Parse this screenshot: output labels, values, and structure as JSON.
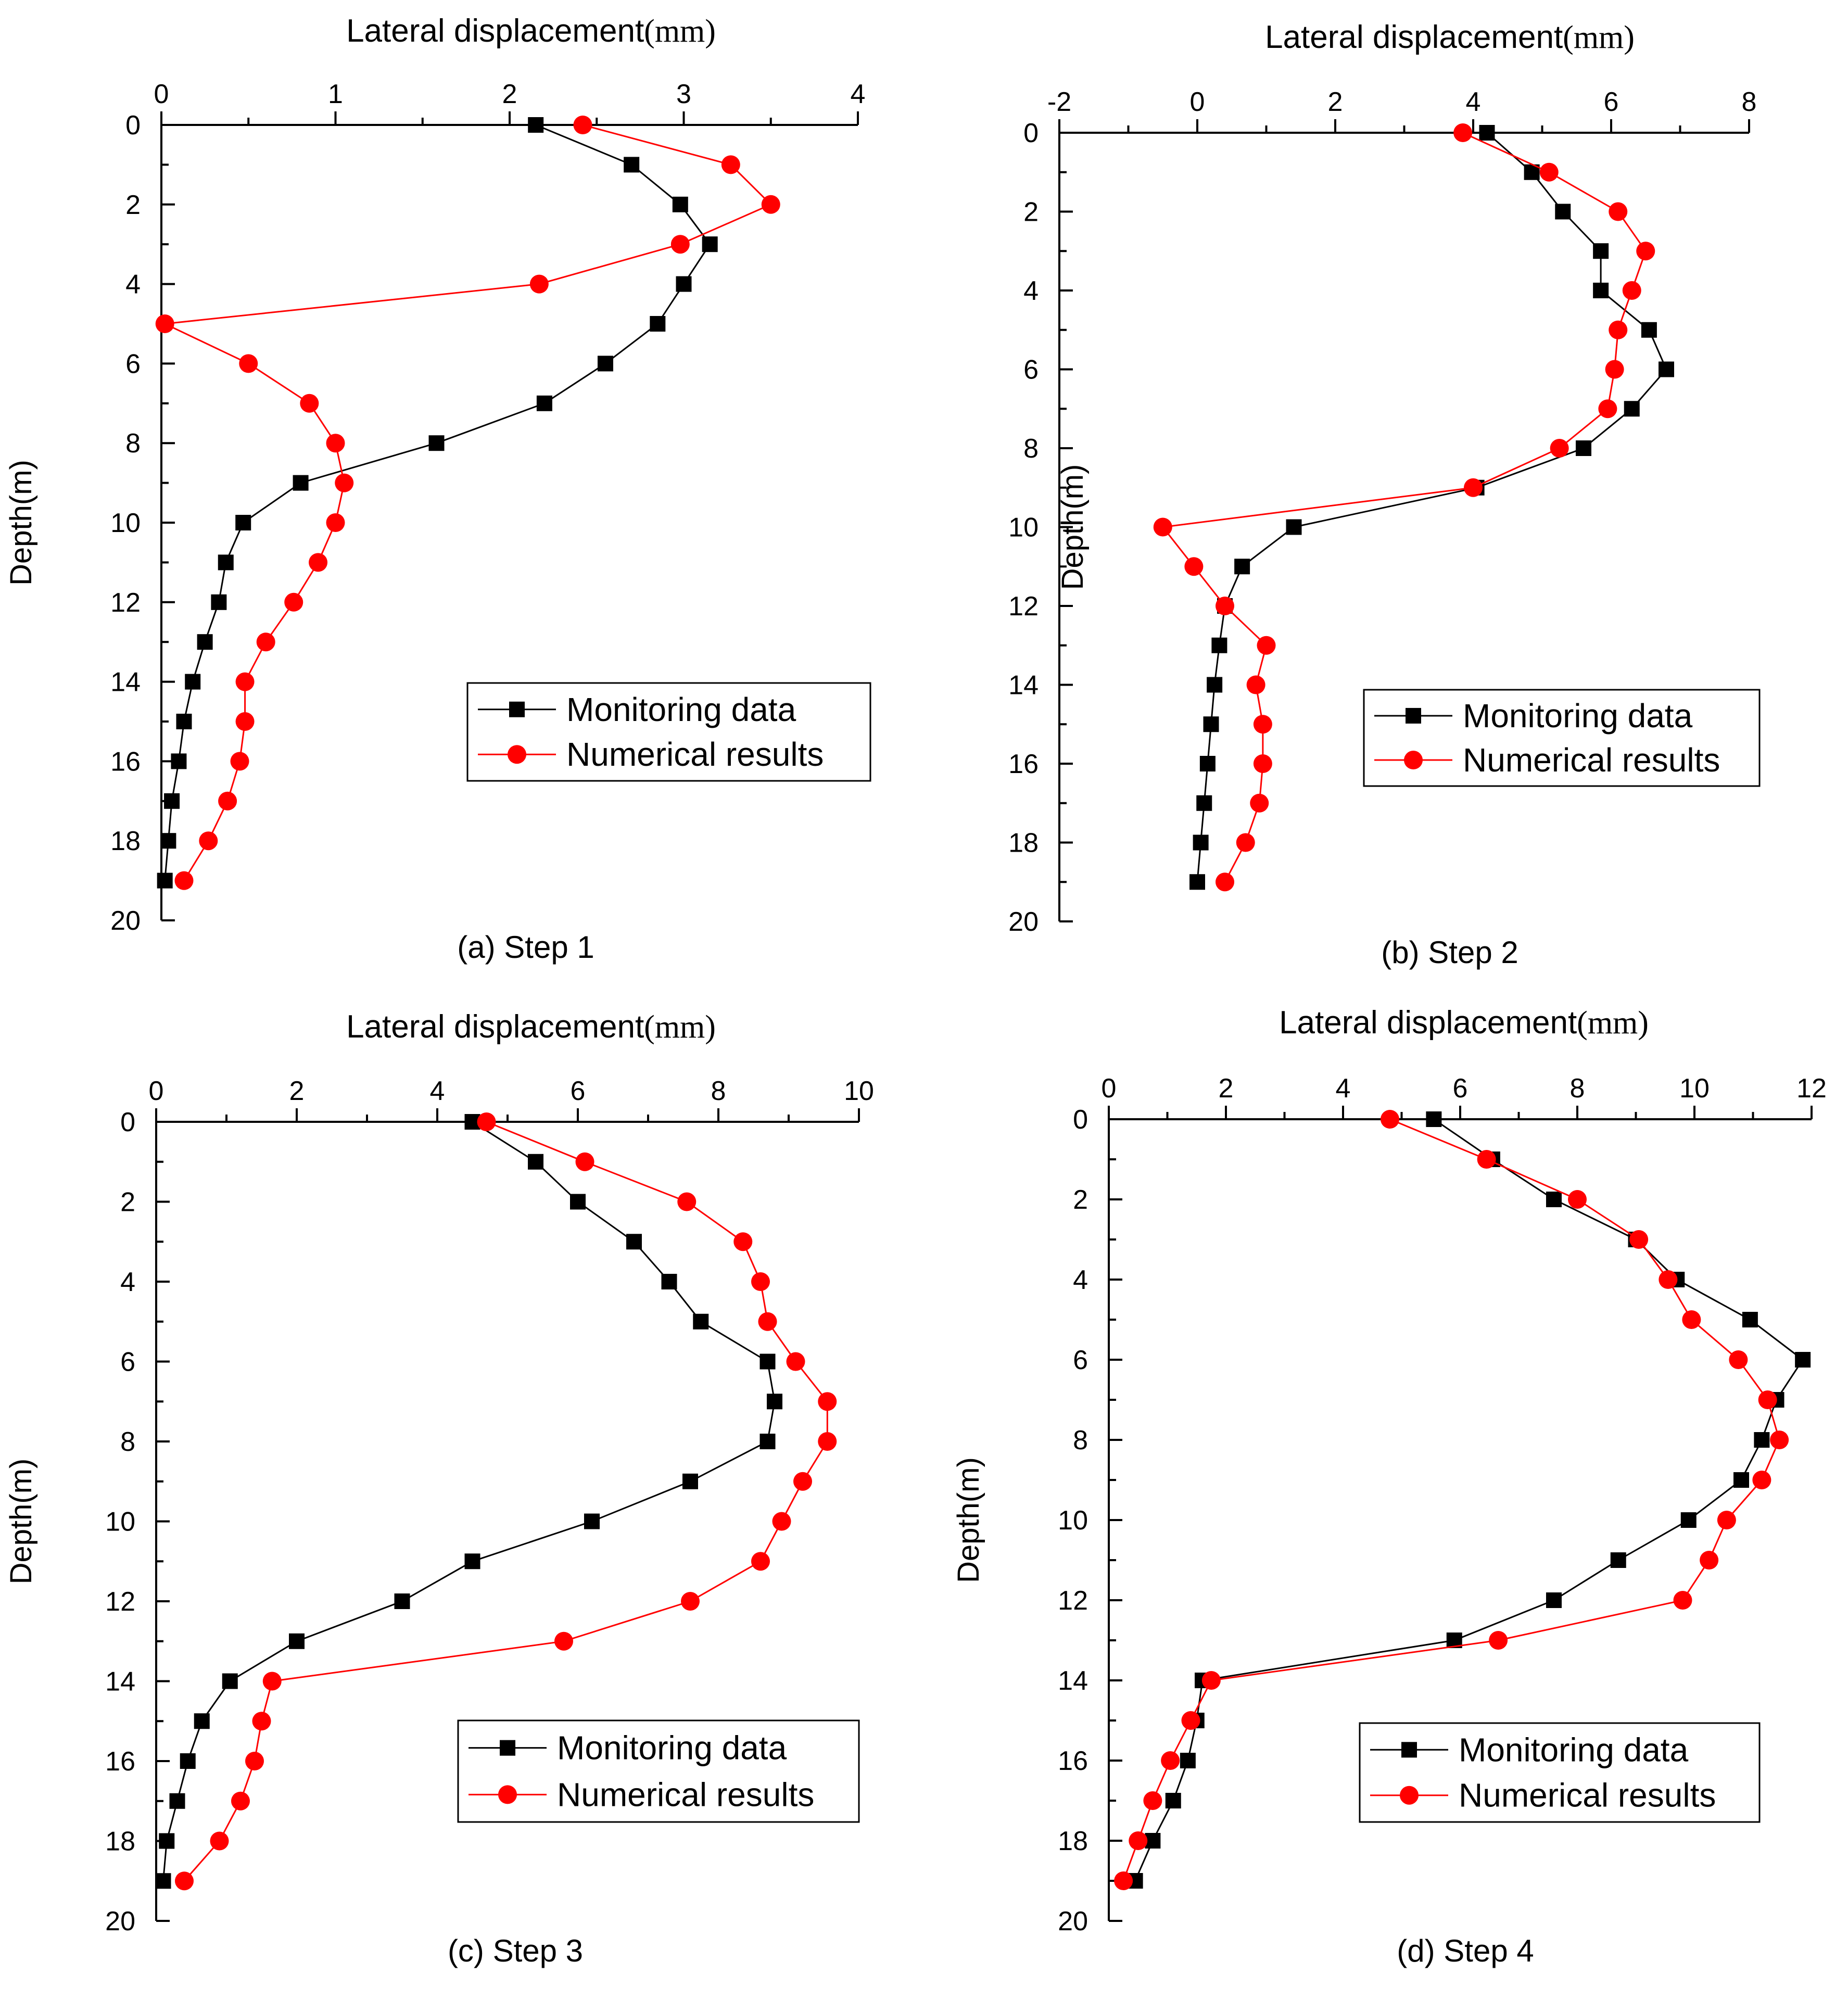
{
  "chart_data": [
    {
      "type": "line",
      "title": "",
      "caption": "(a) Step 1",
      "xlabel": "Lateral displacement",
      "xunit": "(mm)",
      "ylabel": "Depth(m)",
      "xlim": [
        0,
        4
      ],
      "xticks": [
        0,
        1,
        2,
        3,
        4
      ],
      "ylim": [
        0,
        20
      ],
      "yticks": [
        0,
        2,
        4,
        6,
        8,
        10,
        12,
        14,
        16,
        18,
        20
      ],
      "legend": [
        "Monitoring data",
        "Numerical results"
      ],
      "series": [
        {
          "name": "Monitoring data",
          "color": "#000000",
          "marker": "square",
          "x": [
            2.15,
            2.7,
            2.98,
            3.15,
            3.0,
            2.85,
            2.55,
            2.2,
            1.58,
            0.8,
            0.47,
            0.37,
            0.33,
            0.25,
            0.18,
            0.13,
            0.1,
            0.06,
            0.04,
            0.02
          ],
          "y": [
            0,
            1,
            2,
            3,
            4,
            5,
            6,
            7,
            8,
            9,
            10,
            11,
            12,
            13,
            14,
            15,
            16,
            17,
            18,
            19
          ]
        },
        {
          "name": "Numerical results",
          "color": "#ff0000",
          "marker": "circle",
          "x": [
            2.42,
            3.27,
            3.5,
            2.98,
            2.17,
            0.02,
            0.5,
            0.85,
            1.0,
            1.05,
            1.0,
            0.9,
            0.76,
            0.6,
            0.48,
            0.48,
            0.45,
            0.38,
            0.27,
            0.13
          ],
          "y": [
            0,
            1,
            2,
            3,
            4,
            5,
            6,
            7,
            8,
            9,
            10,
            11,
            12,
            13,
            14,
            15,
            16,
            17,
            18,
            19
          ]
        }
      ]
    },
    {
      "type": "line",
      "title": "",
      "caption": "(b) Step 2",
      "xlabel": "Lateral displacement",
      "xunit": "(mm)",
      "ylabel": "Depth(m)",
      "xlim": [
        -2,
        8
      ],
      "xticks": [
        -2,
        0,
        2,
        4,
        6,
        8
      ],
      "ylim": [
        0,
        20
      ],
      "yticks": [
        0,
        2,
        4,
        6,
        8,
        10,
        12,
        14,
        16,
        18,
        20
      ],
      "legend": [
        "Monitoring data",
        "Numerical results"
      ],
      "series": [
        {
          "name": "Monitoring data",
          "color": "#000000",
          "marker": "square",
          "x": [
            4.2,
            4.85,
            5.3,
            5.85,
            5.85,
            6.55,
            6.8,
            6.3,
            5.6,
            4.05,
            1.4,
            0.65,
            0.4,
            0.32,
            0.25,
            0.2,
            0.15,
            0.1,
            0.05,
            0.0
          ],
          "y": [
            0,
            1,
            2,
            3,
            4,
            5,
            6,
            7,
            8,
            9,
            10,
            11,
            12,
            13,
            14,
            15,
            16,
            17,
            18,
            19
          ]
        },
        {
          "name": "Numerical results",
          "color": "#ff0000",
          "marker": "circle",
          "x": [
            3.85,
            5.1,
            6.1,
            6.5,
            6.3,
            6.1,
            6.05,
            5.95,
            5.25,
            4.0,
            -0.5,
            -0.05,
            0.4,
            1.0,
            0.85,
            0.95,
            0.95,
            0.9,
            0.7,
            0.4
          ],
          "y": [
            0,
            1,
            2,
            3,
            4,
            5,
            6,
            7,
            8,
            9,
            10,
            11,
            12,
            13,
            14,
            15,
            16,
            17,
            18,
            19
          ]
        }
      ]
    },
    {
      "type": "line",
      "title": "",
      "caption": "(c) Step 3",
      "xlabel": "Lateral displacement",
      "xunit": "(mm)",
      "ylabel": "Depth(m)",
      "xlim": [
        0,
        10
      ],
      "xticks": [
        0,
        2,
        4,
        6,
        8,
        10
      ],
      "ylim": [
        0,
        20
      ],
      "yticks": [
        0,
        2,
        4,
        6,
        8,
        10,
        12,
        14,
        16,
        18,
        20
      ],
      "legend": [
        "Monitoring data",
        "Numerical results"
      ],
      "series": [
        {
          "name": "Monitoring data",
          "color": "#000000",
          "marker": "square",
          "x": [
            4.5,
            5.4,
            6.0,
            6.8,
            7.3,
            7.75,
            8.7,
            8.8,
            8.7,
            7.6,
            6.2,
            4.5,
            3.5,
            2.0,
            1.05,
            0.65,
            0.45,
            0.3,
            0.15,
            0.1
          ],
          "y": [
            0,
            1,
            2,
            3,
            4,
            5,
            6,
            7,
            8,
            9,
            10,
            11,
            12,
            13,
            14,
            15,
            16,
            17,
            18,
            19
          ]
        },
        {
          "name": "Numerical results",
          "color": "#ff0000",
          "marker": "circle",
          "x": [
            4.7,
            6.1,
            7.55,
            8.35,
            8.6,
            8.7,
            9.1,
            9.55,
            9.55,
            9.2,
            8.9,
            8.6,
            7.6,
            5.8,
            1.65,
            1.5,
            1.4,
            1.2,
            0.9,
            0.4
          ],
          "y": [
            0,
            1,
            2,
            3,
            4,
            5,
            6,
            7,
            8,
            9,
            10,
            11,
            12,
            13,
            14,
            15,
            16,
            17,
            18,
            19
          ]
        }
      ]
    },
    {
      "type": "line",
      "title": "",
      "caption": "(d) Step 4",
      "xlabel": "Lateral displacement",
      "xunit": "(mm)",
      "ylabel": "Depth(m)",
      "xlim": [
        0,
        12
      ],
      "xticks": [
        0,
        2,
        4,
        6,
        8,
        10,
        12
      ],
      "ylim": [
        0,
        20
      ],
      "yticks": [
        0,
        2,
        4,
        6,
        8,
        10,
        12,
        14,
        16,
        18,
        20
      ],
      "legend": [
        "Monitoring data",
        "Numerical results"
      ],
      "series": [
        {
          "name": "Monitoring data",
          "color": "#000000",
          "marker": "square",
          "x": [
            5.55,
            6.55,
            7.6,
            9.0,
            9.7,
            10.95,
            11.85,
            11.4,
            11.15,
            10.8,
            9.9,
            8.7,
            7.6,
            5.9,
            1.6,
            1.5,
            1.35,
            1.1,
            0.75,
            0.45
          ],
          "y": [
            0,
            1,
            2,
            3,
            4,
            5,
            6,
            7,
            8,
            9,
            10,
            11,
            12,
            13,
            14,
            15,
            16,
            17,
            18,
            19
          ]
        },
        {
          "name": "Numerical results",
          "color": "#ff0000",
          "marker": "circle",
          "x": [
            4.8,
            6.45,
            8.0,
            9.05,
            9.55,
            9.95,
            10.75,
            11.25,
            11.45,
            11.15,
            10.55,
            10.25,
            9.8,
            6.65,
            1.75,
            1.4,
            1.05,
            0.75,
            0.5,
            0.25
          ],
          "y": [
            0,
            1,
            2,
            3,
            4,
            5,
            6,
            7,
            8,
            9,
            10,
            11,
            12,
            13,
            14,
            15,
            16,
            17,
            18,
            19
          ]
        }
      ]
    }
  ]
}
